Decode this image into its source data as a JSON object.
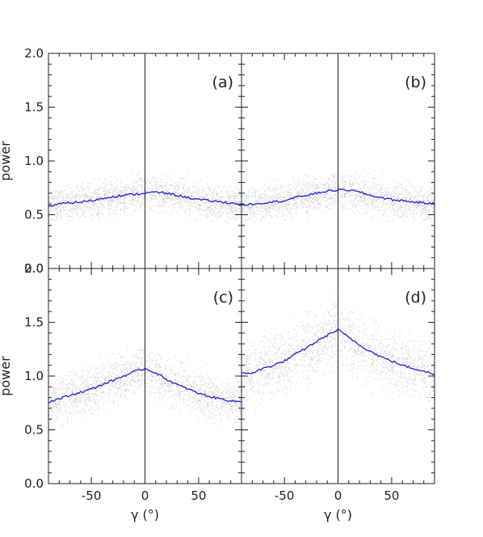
{
  "chart_data": [
    {
      "panel": "(a)",
      "type": "scatter",
      "xlim": [
        -90,
        90
      ],
      "ylim": [
        0.0,
        2.0
      ],
      "ylabel": "power",
      "x": [
        -90,
        -80,
        -70,
        -60,
        -50,
        -40,
        -30,
        -20,
        -10,
        0,
        10,
        20,
        30,
        40,
        50,
        60,
        70,
        80,
        90
      ],
      "y": [
        0.58,
        0.6,
        0.61,
        0.62,
        0.63,
        0.65,
        0.67,
        0.68,
        0.69,
        0.7,
        0.71,
        0.7,
        0.68,
        0.66,
        0.64,
        0.63,
        0.62,
        0.61,
        0.59
      ],
      "spread": 0.3,
      "series_color": "#1f1fdc",
      "scatter_color": "#b4b4b4"
    },
    {
      "panel": "(b)",
      "type": "scatter",
      "xlim": [
        -90,
        90
      ],
      "ylim": [
        0.0,
        2.0
      ],
      "x": [
        -90,
        -80,
        -70,
        -60,
        -50,
        -40,
        -30,
        -20,
        -10,
        0,
        10,
        20,
        30,
        40,
        50,
        60,
        70,
        80,
        90
      ],
      "y": [
        0.59,
        0.6,
        0.61,
        0.62,
        0.63,
        0.66,
        0.68,
        0.7,
        0.72,
        0.73,
        0.73,
        0.71,
        0.68,
        0.66,
        0.64,
        0.63,
        0.62,
        0.61,
        0.6
      ],
      "spread": 0.3,
      "series_color": "#1f1fdc",
      "scatter_color": "#b4b4b4"
    },
    {
      "panel": "(c)",
      "type": "scatter",
      "xlim": [
        -90,
        90
      ],
      "ylim": [
        0.0,
        2.0
      ],
      "ylabel": "power",
      "xlabel": "γ (°)",
      "x": [
        -90,
        -80,
        -70,
        -60,
        -50,
        -40,
        -30,
        -20,
        -10,
        0,
        10,
        20,
        30,
        40,
        50,
        60,
        70,
        80,
        90
      ],
      "y": [
        0.76,
        0.79,
        0.82,
        0.85,
        0.88,
        0.92,
        0.96,
        1.0,
        1.04,
        1.07,
        1.03,
        0.97,
        0.92,
        0.88,
        0.84,
        0.81,
        0.79,
        0.77,
        0.76
      ],
      "spread": 0.4,
      "series_color": "#1f1fdc",
      "scatter_color": "#b4b4b4"
    },
    {
      "panel": "(d)",
      "type": "scatter",
      "xlim": [
        -90,
        90
      ],
      "ylim": [
        0.0,
        2.0
      ],
      "xlabel": "γ (°)",
      "x": [
        -90,
        -80,
        -70,
        -60,
        -50,
        -40,
        -30,
        -20,
        -10,
        0,
        10,
        20,
        30,
        40,
        50,
        60,
        70,
        80,
        90
      ],
      "y": [
        1.02,
        1.03,
        1.07,
        1.1,
        1.14,
        1.2,
        1.26,
        1.32,
        1.38,
        1.43,
        1.36,
        1.29,
        1.23,
        1.18,
        1.14,
        1.1,
        1.07,
        1.05,
        1.01
      ],
      "spread": 0.55,
      "series_color": "#1f1fdc",
      "scatter_color": "#b4b4b4"
    }
  ],
  "yticks": [
    "0.0",
    "0.5",
    "1.0",
    "1.5",
    "2.0"
  ],
  "xticks": [
    "-50",
    "0",
    "50"
  ]
}
